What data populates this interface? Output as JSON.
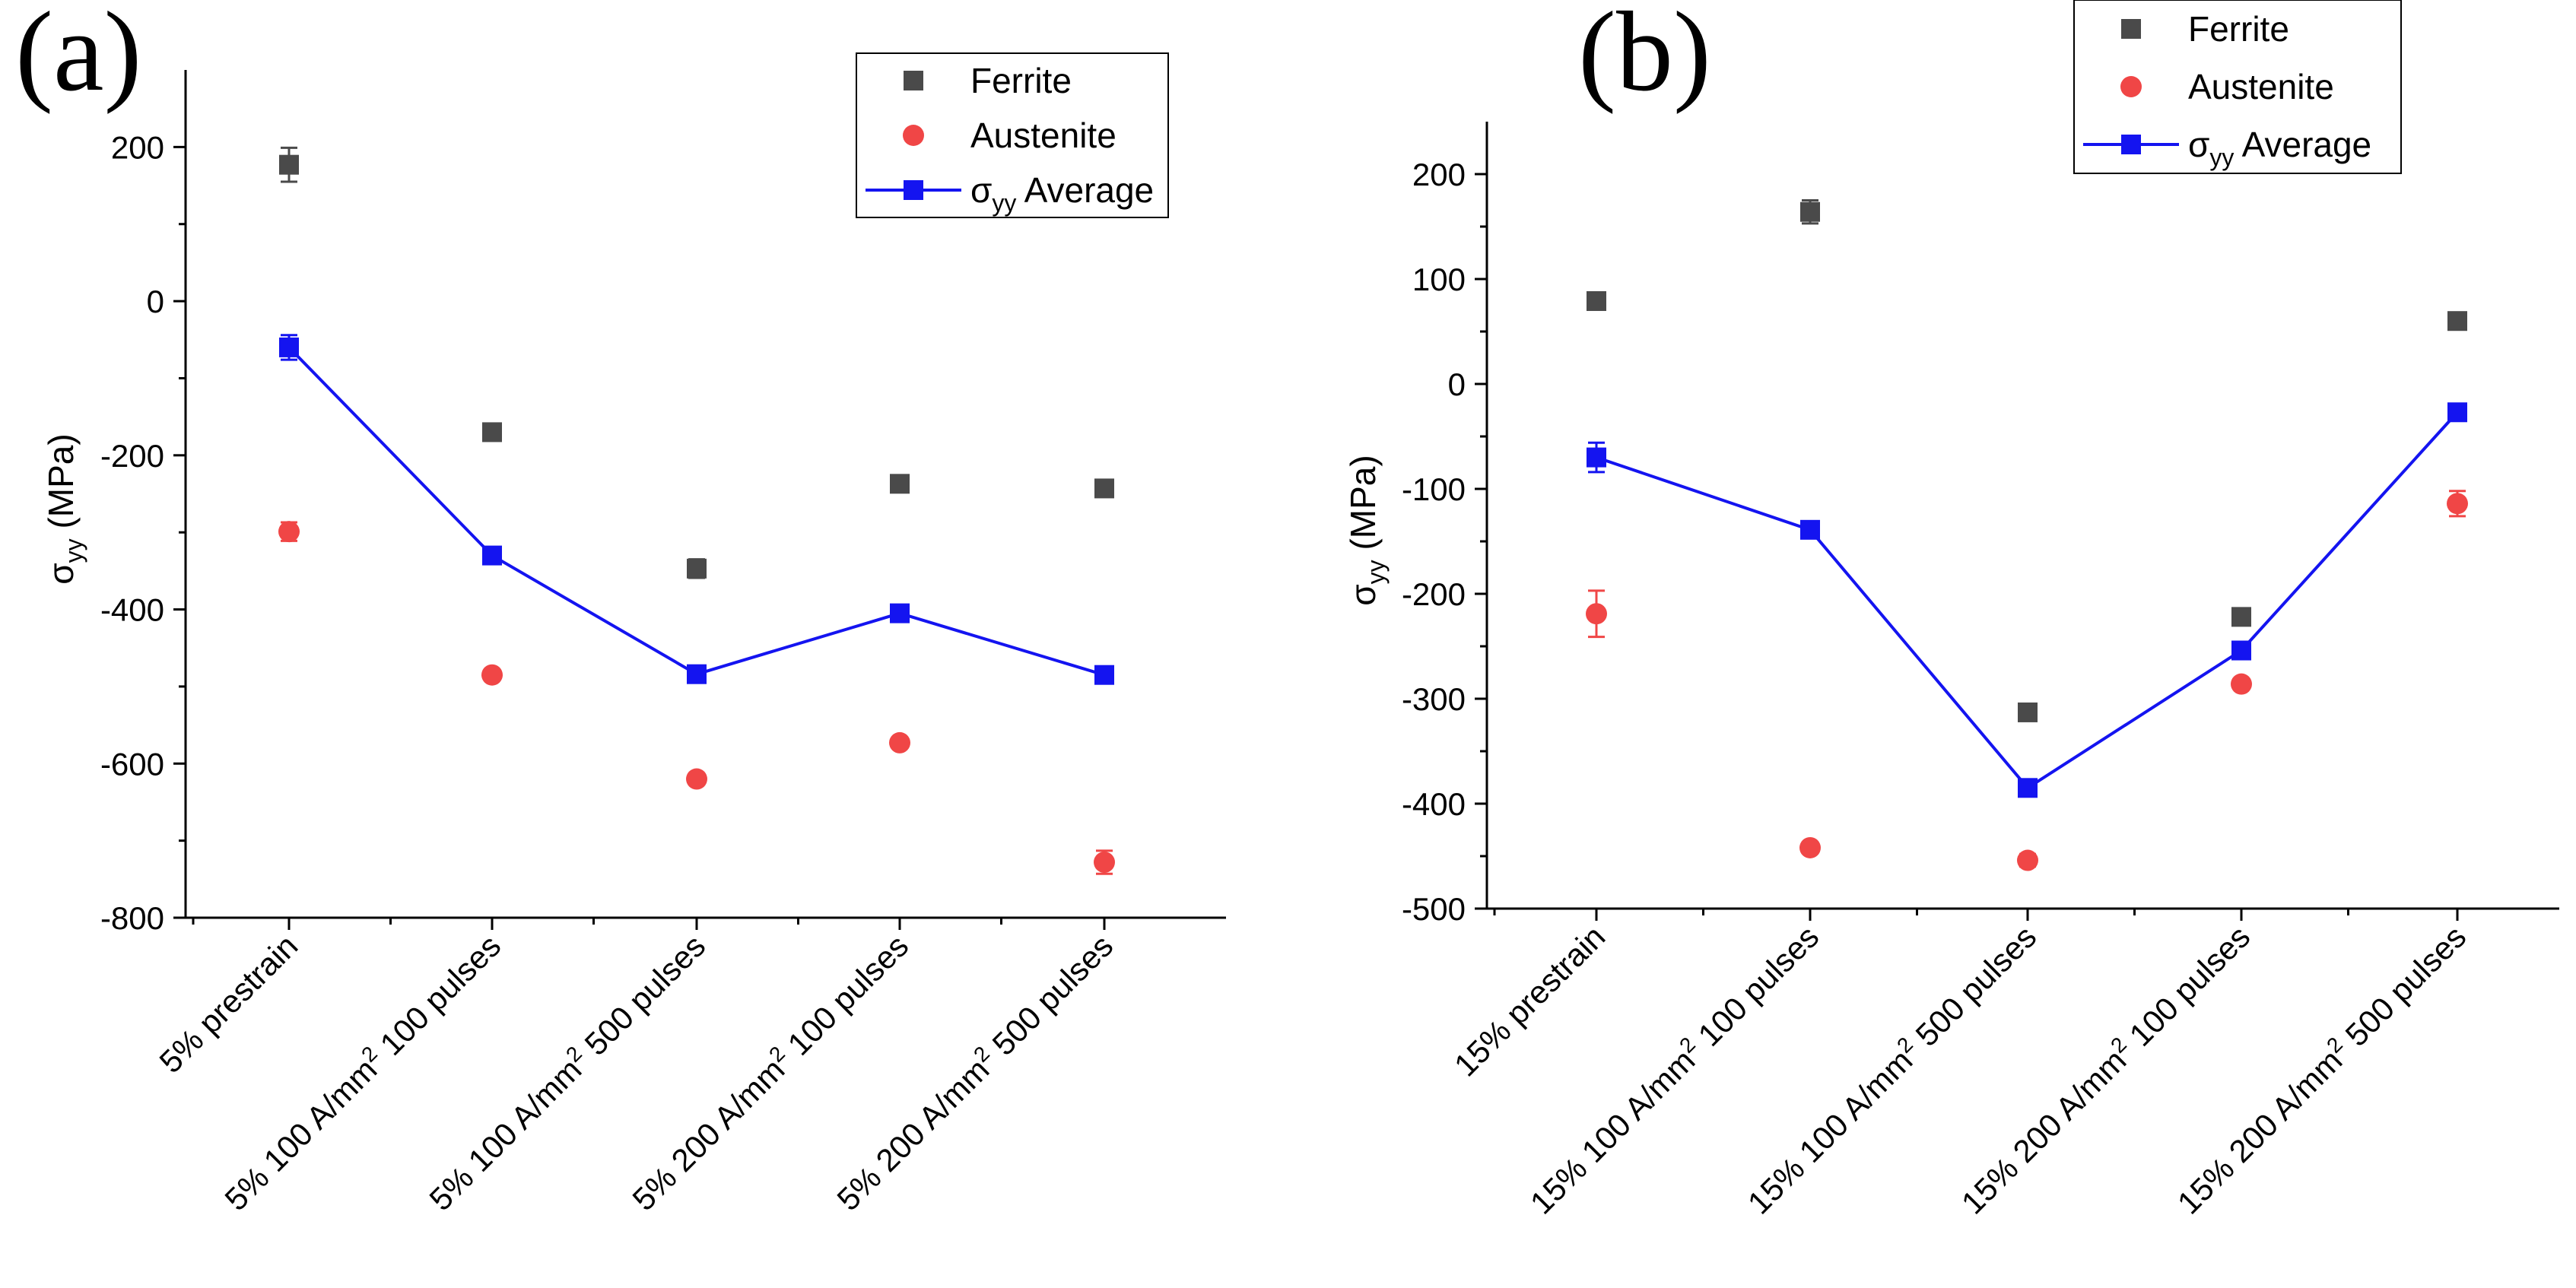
{
  "chart_data": [
    {
      "type": "scatter",
      "panel_label": "(a)",
      "title": "",
      "xlabel": "",
      "ylabel": "σ",
      "ylabel_sub": "yy",
      "ylabel_unit": " (MPa)",
      "ylim": [
        -800,
        300
      ],
      "yticks": [
        200,
        0,
        -200,
        -400,
        -600,
        -800
      ],
      "ytick_labels": [
        "200",
        "0",
        "-200",
        "-400",
        "-600",
        "-800"
      ],
      "categories": [
        [
          "5% prestrain"
        ],
        [
          "5% 100 A/mm",
          "2",
          " 100 pulses"
        ],
        [
          "5% 100 A/mm",
          "2",
          " 500 pulses"
        ],
        [
          "5% 200 A/mm",
          "2",
          " 100 pulses"
        ],
        [
          "5% 200 A/mm",
          "2",
          " 500 pulses"
        ]
      ],
      "legend_position": "top-right",
      "series": [
        {
          "name": "Ferrite",
          "marker": "square",
          "color": "#4a4a4a",
          "line": false,
          "values": [
            177,
            -170,
            -347,
            -237,
            -243
          ],
          "errors": [
            22,
            5,
            12,
            5,
            5
          ]
        },
        {
          "name": "Austenite",
          "marker": "circle",
          "color": "#f04646",
          "line": false,
          "values": [
            -299,
            -485,
            -620,
            -573,
            -728
          ],
          "errors": [
            12,
            5,
            6,
            5,
            15
          ]
        },
        {
          "name": "σ",
          "name_sub": "yy",
          "name_suffix": " Average",
          "marker": "square",
          "color": "#1414f0",
          "line": true,
          "values": [
            -60,
            -330,
            -484,
            -405,
            -485
          ],
          "errors": [
            16,
            4,
            5,
            4,
            4
          ]
        }
      ]
    },
    {
      "type": "scatter",
      "panel_label": "(b)",
      "title": "",
      "xlabel": "",
      "ylabel": "σ",
      "ylabel_sub": "yy",
      "ylabel_unit": " (MPa)",
      "ylim": [
        -500,
        250
      ],
      "yticks": [
        200,
        100,
        0,
        -100,
        -200,
        -300,
        -400,
        -500
      ],
      "ytick_labels": [
        "200",
        "100",
        "0",
        "-100",
        "-200",
        "-300",
        "-400",
        "-500"
      ],
      "categories": [
        [
          "15% prestrain"
        ],
        [
          "15% 100 A/mm",
          "2",
          " 100 pulses"
        ],
        [
          "15% 100 A/mm",
          "2",
          " 500 pulses"
        ],
        [
          "15% 200 A/mm",
          "2",
          " 100 pulses"
        ],
        [
          "15% 200 A/mm",
          "2",
          " 500 pulses"
        ]
      ],
      "legend_position": "top-right",
      "series": [
        {
          "name": "Ferrite",
          "marker": "square",
          "color": "#4a4a4a",
          "line": false,
          "values": [
            79,
            164,
            -313,
            -222,
            60
          ],
          "errors": [
            5,
            11,
            4,
            4,
            4
          ]
        },
        {
          "name": "Austenite",
          "marker": "circle",
          "color": "#f04646",
          "line": false,
          "values": [
            -219,
            -442,
            -454,
            -286,
            -114
          ],
          "errors": [
            22,
            4,
            6,
            5,
            12
          ]
        },
        {
          "name": "σ",
          "name_sub": "yy",
          "name_suffix": " Average",
          "marker": "square",
          "color": "#1414f0",
          "line": true,
          "values": [
            -70,
            -139,
            -385,
            -254,
            -27
          ],
          "errors": [
            14,
            4,
            5,
            4,
            4
          ]
        }
      ]
    }
  ]
}
